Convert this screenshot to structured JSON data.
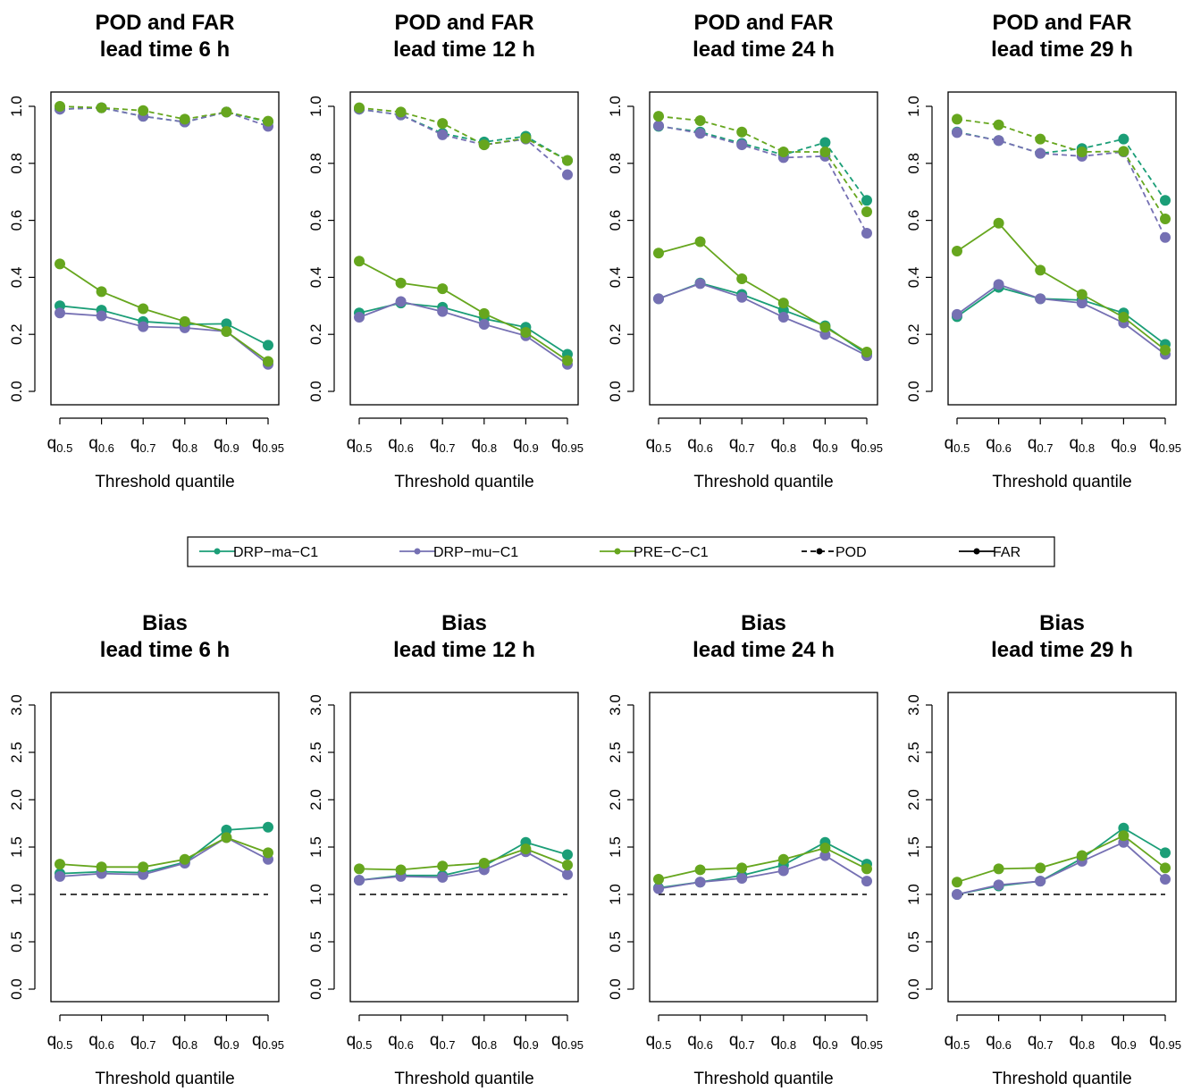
{
  "colors": {
    "DRP-ma-C1": "#1b9e77",
    "DRP-mu-C1": "#7570b3",
    "PRE-C-C1": "#66a61e",
    "reference": "#000000"
  },
  "legend": {
    "entries": [
      {
        "label": "DRP−ma−C1",
        "series": "DRP-ma-C1",
        "line": "solid"
      },
      {
        "label": "DRP−mu−C1",
        "series": "DRP-mu-C1",
        "line": "solid"
      },
      {
        "label": "PRE−C−C1",
        "series": "PRE-C-C1",
        "line": "solid"
      },
      {
        "label": "POD",
        "series": "reference",
        "line": "dashed"
      },
      {
        "label": "FAR",
        "series": "reference",
        "line": "solid"
      }
    ]
  },
  "chart_data": [
    {
      "type": "line",
      "title": [
        "POD and FAR",
        "lead time 6 h"
      ],
      "xlabel": "Threshold quantile",
      "categories": [
        [
          "q",
          "0.5"
        ],
        [
          "q",
          "0.6"
        ],
        [
          "q",
          "0.7"
        ],
        [
          "q",
          "0.8"
        ],
        [
          "q",
          "0.9"
        ],
        [
          "q",
          "0.95"
        ]
      ],
      "ylim": [
        0,
        1
      ],
      "yticks": [
        "0.0",
        "0.2",
        "0.4",
        "0.6",
        "0.8",
        "1.0"
      ],
      "series": [
        {
          "name": "DRP-ma-C1",
          "metric": "POD",
          "values": [
            0.99,
            0.995,
            0.965,
            0.945,
            0.98,
            0.945
          ]
        },
        {
          "name": "DRP-mu-C1",
          "metric": "POD",
          "values": [
            0.99,
            0.995,
            0.965,
            0.945,
            0.98,
            0.93
          ]
        },
        {
          "name": "PRE-C-C1",
          "metric": "POD",
          "values": [
            1.0,
            0.995,
            0.985,
            0.955,
            0.98,
            0.948
          ]
        },
        {
          "name": "DRP-ma-C1",
          "metric": "FAR",
          "values": [
            0.3,
            0.285,
            0.245,
            0.235,
            0.237,
            0.162
          ]
        },
        {
          "name": "DRP-mu-C1",
          "metric": "FAR",
          "values": [
            0.275,
            0.265,
            0.227,
            0.223,
            0.21,
            0.095
          ]
        },
        {
          "name": "PRE-C-C1",
          "metric": "FAR",
          "values": [
            0.447,
            0.35,
            0.29,
            0.245,
            0.21,
            0.105
          ]
        }
      ]
    },
    {
      "type": "line",
      "title": [
        "POD and FAR",
        "lead time 12 h"
      ],
      "xlabel": "Threshold quantile",
      "categories": [
        [
          "q",
          "0.5"
        ],
        [
          "q",
          "0.6"
        ],
        [
          "q",
          "0.7"
        ],
        [
          "q",
          "0.8"
        ],
        [
          "q",
          "0.9"
        ],
        [
          "q",
          "0.95"
        ]
      ],
      "ylim": [
        0,
        1
      ],
      "yticks": [
        "0.0",
        "0.2",
        "0.4",
        "0.6",
        "0.8",
        "1.0"
      ],
      "series": [
        {
          "name": "DRP-ma-C1",
          "metric": "POD",
          "values": [
            0.99,
            0.97,
            0.905,
            0.875,
            0.895,
            0.81
          ]
        },
        {
          "name": "DRP-mu-C1",
          "metric": "POD",
          "values": [
            0.99,
            0.97,
            0.9,
            0.865,
            0.885,
            0.76
          ]
        },
        {
          "name": "PRE-C-C1",
          "metric": "POD",
          "values": [
            0.995,
            0.98,
            0.94,
            0.865,
            0.888,
            0.81
          ]
        },
        {
          "name": "DRP-ma-C1",
          "metric": "FAR",
          "values": [
            0.275,
            0.31,
            0.295,
            0.255,
            0.225,
            0.13
          ]
        },
        {
          "name": "DRP-mu-C1",
          "metric": "FAR",
          "values": [
            0.26,
            0.315,
            0.28,
            0.235,
            0.195,
            0.095
          ]
        },
        {
          "name": "PRE-C-C1",
          "metric": "FAR",
          "values": [
            0.457,
            0.38,
            0.36,
            0.273,
            0.207,
            0.108
          ]
        }
      ]
    },
    {
      "type": "line",
      "title": [
        "POD and FAR",
        "lead time 24 h"
      ],
      "xlabel": "Threshold quantile",
      "categories": [
        [
          "q",
          "0.5"
        ],
        [
          "q",
          "0.6"
        ],
        [
          "q",
          "0.7"
        ],
        [
          "q",
          "0.8"
        ],
        [
          "q",
          "0.9"
        ],
        [
          "q",
          "0.95"
        ]
      ],
      "ylim": [
        0,
        1
      ],
      "yticks": [
        "0.0",
        "0.2",
        "0.4",
        "0.6",
        "0.8",
        "1.0"
      ],
      "series": [
        {
          "name": "DRP-ma-C1",
          "metric": "POD",
          "values": [
            0.93,
            0.91,
            0.87,
            0.83,
            0.873,
            0.67
          ]
        },
        {
          "name": "DRP-mu-C1",
          "metric": "POD",
          "values": [
            0.932,
            0.905,
            0.865,
            0.82,
            0.825,
            0.555
          ]
        },
        {
          "name": "PRE-C-C1",
          "metric": "POD",
          "values": [
            0.965,
            0.95,
            0.91,
            0.84,
            0.84,
            0.63
          ]
        },
        {
          "name": "DRP-ma-C1",
          "metric": "FAR",
          "values": [
            0.325,
            0.38,
            0.34,
            0.285,
            0.23,
            0.13
          ]
        },
        {
          "name": "DRP-mu-C1",
          "metric": "FAR",
          "values": [
            0.325,
            0.378,
            0.33,
            0.26,
            0.2,
            0.125
          ]
        },
        {
          "name": "PRE-C-C1",
          "metric": "FAR",
          "values": [
            0.485,
            0.525,
            0.395,
            0.31,
            0.225,
            0.138
          ]
        }
      ]
    },
    {
      "type": "line",
      "title": [
        "POD and FAR",
        "lead time 29 h"
      ],
      "xlabel": "Threshold quantile",
      "categories": [
        [
          "q",
          "0.5"
        ],
        [
          "q",
          "0.6"
        ],
        [
          "q",
          "0.7"
        ],
        [
          "q",
          "0.8"
        ],
        [
          "q",
          "0.9"
        ],
        [
          "q",
          "0.95"
        ]
      ],
      "ylim": [
        0,
        1
      ],
      "yticks": [
        "0.0",
        "0.2",
        "0.4",
        "0.6",
        "0.8",
        "1.0"
      ],
      "series": [
        {
          "name": "DRP-ma-C1",
          "metric": "POD",
          "values": [
            0.91,
            0.88,
            0.835,
            0.852,
            0.885,
            0.67
          ]
        },
        {
          "name": "DRP-mu-C1",
          "metric": "POD",
          "values": [
            0.908,
            0.88,
            0.835,
            0.825,
            0.84,
            0.54
          ]
        },
        {
          "name": "PRE-C-C1",
          "metric": "POD",
          "values": [
            0.955,
            0.935,
            0.885,
            0.84,
            0.842,
            0.605
          ]
        },
        {
          "name": "DRP-ma-C1",
          "metric": "FAR",
          "values": [
            0.262,
            0.365,
            0.325,
            0.32,
            0.275,
            0.165
          ]
        },
        {
          "name": "DRP-mu-C1",
          "metric": "FAR",
          "values": [
            0.27,
            0.375,
            0.325,
            0.31,
            0.24,
            0.13
          ]
        },
        {
          "name": "PRE-C-C1",
          "metric": "FAR",
          "values": [
            0.492,
            0.59,
            0.425,
            0.34,
            0.26,
            0.145
          ]
        }
      ]
    },
    {
      "type": "line",
      "title": [
        "Bias",
        "lead time 6 h"
      ],
      "xlabel": "Threshold quantile",
      "categories": [
        [
          "q",
          "0.5"
        ],
        [
          "q",
          "0.6"
        ],
        [
          "q",
          "0.7"
        ],
        [
          "q",
          "0.8"
        ],
        [
          "q",
          "0.9"
        ],
        [
          "q",
          "0.95"
        ]
      ],
      "ylim": [
        0,
        3
      ],
      "yticks": [
        "0.0",
        "0.5",
        "1.0",
        "1.5",
        "2.0",
        "2.5",
        "3.0"
      ],
      "reference_line": 1.0,
      "series": [
        {
          "name": "DRP-ma-C1",
          "values": [
            1.22,
            1.24,
            1.23,
            1.34,
            1.68,
            1.71
          ]
        },
        {
          "name": "DRP-mu-C1",
          "values": [
            1.19,
            1.22,
            1.21,
            1.33,
            1.6,
            1.37
          ]
        },
        {
          "name": "PRE-C-C1",
          "values": [
            1.32,
            1.29,
            1.29,
            1.37,
            1.6,
            1.44
          ]
        }
      ]
    },
    {
      "type": "line",
      "title": [
        "Bias",
        "lead time 12 h"
      ],
      "xlabel": "Threshold quantile",
      "categories": [
        [
          "q",
          "0.5"
        ],
        [
          "q",
          "0.6"
        ],
        [
          "q",
          "0.7"
        ],
        [
          "q",
          "0.8"
        ],
        [
          "q",
          "0.9"
        ],
        [
          "q",
          "0.95"
        ]
      ],
      "ylim": [
        0,
        3
      ],
      "yticks": [
        "0.0",
        "0.5",
        "1.0",
        "1.5",
        "2.0",
        "2.5",
        "3.0"
      ],
      "reference_line": 1.0,
      "series": [
        {
          "name": "DRP-ma-C1",
          "values": [
            1.15,
            1.2,
            1.2,
            1.3,
            1.55,
            1.42
          ]
        },
        {
          "name": "DRP-mu-C1",
          "values": [
            1.15,
            1.19,
            1.18,
            1.26,
            1.45,
            1.21
          ]
        },
        {
          "name": "PRE-C-C1",
          "values": [
            1.27,
            1.26,
            1.3,
            1.33,
            1.48,
            1.31
          ]
        }
      ]
    },
    {
      "type": "line",
      "title": [
        "Bias",
        "lead time 24 h"
      ],
      "xlabel": "Threshold quantile",
      "categories": [
        [
          "q",
          "0.5"
        ],
        [
          "q",
          "0.6"
        ],
        [
          "q",
          "0.7"
        ],
        [
          "q",
          "0.8"
        ],
        [
          "q",
          "0.9"
        ],
        [
          "q",
          "0.95"
        ]
      ],
      "ylim": [
        0,
        3
      ],
      "yticks": [
        "0.0",
        "0.5",
        "1.0",
        "1.5",
        "2.0",
        "2.5",
        "3.0"
      ],
      "reference_line": 1.0,
      "series": [
        {
          "name": "DRP-ma-C1",
          "values": [
            1.07,
            1.13,
            1.2,
            1.31,
            1.55,
            1.32
          ]
        },
        {
          "name": "DRP-mu-C1",
          "values": [
            1.06,
            1.13,
            1.17,
            1.25,
            1.41,
            1.14
          ]
        },
        {
          "name": "PRE-C-C1",
          "values": [
            1.16,
            1.26,
            1.28,
            1.37,
            1.49,
            1.27
          ]
        }
      ]
    },
    {
      "type": "line",
      "title": [
        "Bias",
        "lead time 29 h"
      ],
      "xlabel": "Threshold quantile",
      "categories": [
        [
          "q",
          "0.5"
        ],
        [
          "q",
          "0.6"
        ],
        [
          "q",
          "0.7"
        ],
        [
          "q",
          "0.8"
        ],
        [
          "q",
          "0.9"
        ],
        [
          "q",
          "0.95"
        ]
      ],
      "ylim": [
        0,
        3
      ],
      "yticks": [
        "0.0",
        "0.5",
        "1.0",
        "1.5",
        "2.0",
        "2.5",
        "3.0"
      ],
      "reference_line": 1.0,
      "series": [
        {
          "name": "DRP-ma-C1",
          "values": [
            1.0,
            1.09,
            1.14,
            1.38,
            1.7,
            1.44
          ]
        },
        {
          "name": "DRP-mu-C1",
          "values": [
            1.0,
            1.1,
            1.14,
            1.35,
            1.55,
            1.16
          ]
        },
        {
          "name": "PRE-C-C1",
          "values": [
            1.13,
            1.27,
            1.28,
            1.41,
            1.62,
            1.28
          ]
        }
      ]
    }
  ]
}
